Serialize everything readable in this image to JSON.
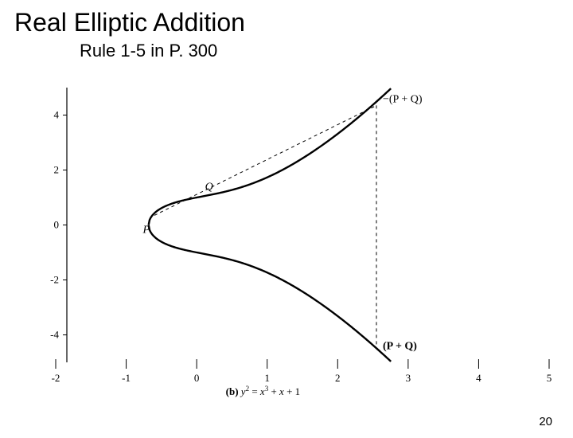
{
  "title": "Real Elliptic Addition",
  "subtitle": "Rule 1-5 in P. 300",
  "page_number": "20",
  "chart": {
    "type": "curve-diagram",
    "xlim": [
      -2,
      5
    ],
    "ylim": [
      -5,
      5
    ],
    "xticks": [
      -2,
      -1,
      0,
      1,
      2,
      3,
      4,
      5
    ],
    "yticks": [
      -4,
      -2,
      0,
      2,
      4
    ],
    "curve_color": "#000000",
    "curve_width": 2.4,
    "axis_color": "#000000",
    "axis_width": 1.2,
    "dashed_color": "#000000",
    "dashed_width": 1,
    "dashed_pattern": "4,4",
    "background_color": "#ffffff",
    "tick_fontsize": 13,
    "caption_fontsize": 13,
    "label_fontsize": 14,
    "points": {
      "P": {
        "x": -0.6,
        "y": 0.35,
        "label": "P"
      },
      "Q": {
        "x": 0.05,
        "y": 1.05,
        "label": "Q"
      },
      "negPQ": {
        "x": 2.55,
        "y": 4.35,
        "label": "−(P + Q)"
      },
      "PQ": {
        "x": 2.55,
        "y": -4.35,
        "label": "(P + Q)"
      }
    },
    "caption_prefix": "(b) ",
    "caption_formula": "y² = x³ + x + 1",
    "font_family": "Times New Roman, serif"
  }
}
